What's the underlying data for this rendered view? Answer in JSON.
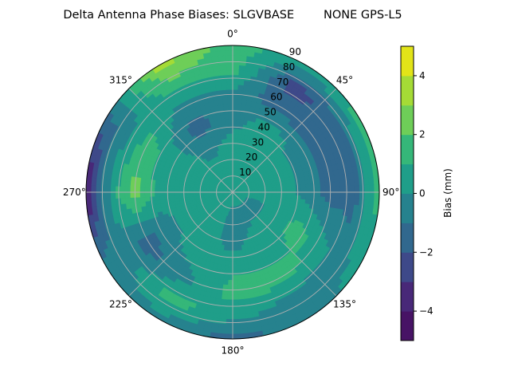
{
  "chart_data": {
    "type": "heatmap",
    "subtype": "polar-filled-contour",
    "title": "Delta Antenna Phase Biases: SLGVBASE        NONE GPS-L5",
    "angular_tick_labels": [
      "0°",
      "45°",
      "90°",
      "135°",
      "180°",
      "225°",
      "270°",
      "315°"
    ],
    "angular_ticks": [
      0,
      45,
      90,
      135,
      180,
      225,
      270,
      315
    ],
    "radial_tick_labels": [
      "10",
      "20",
      "30",
      "40",
      "50",
      "60",
      "70",
      "80",
      "90"
    ],
    "radial_ticks": [
      10,
      20,
      30,
      40,
      50,
      60,
      70,
      80,
      90
    ],
    "radial_range": [
      0,
      90
    ],
    "angular_direction": "clockwise",
    "angular_zero": "top",
    "grid": true,
    "colormap": "viridis",
    "colorbar": {
      "label": "Bias (mm)",
      "range": [
        -5,
        5
      ],
      "levels": [
        -5,
        -4,
        -3,
        -2,
        -1,
        0,
        1,
        2,
        3,
        4,
        5
      ],
      "tick_labels": [
        "−4",
        "−2",
        "0",
        "2",
        "4"
      ],
      "ticks": [
        -4,
        -2,
        0,
        2,
        4
      ],
      "placement": "right"
    },
    "level_colors": [
      "#471365",
      "#482878",
      "#3e4989",
      "#31688e",
      "#26828e",
      "#1f9e89",
      "#35b779",
      "#6ece58",
      "#a5db36",
      "#e2e418"
    ],
    "grid_azimuth_deg": [
      0,
      30,
      60,
      90,
      120,
      150,
      180,
      210,
      240,
      270,
      300,
      330
    ],
    "grid_zenith_deg": [
      0,
      15,
      30,
      45,
      60,
      75,
      90
    ],
    "values_mm": [
      [
        0.5,
        0.5,
        0.5,
        -0.5,
        -0.5,
        1.5,
        1.5
      ],
      [
        0.5,
        0.5,
        0.5,
        0.5,
        -1.5,
        -2.5,
        0.5
      ],
      [
        0.5,
        0.5,
        0.5,
        -0.5,
        -1.5,
        -1.5,
        1.5
      ],
      [
        0.5,
        0.5,
        0.5,
        -0.5,
        -1.5,
        -1.5,
        1.5
      ],
      [
        0.5,
        -0.5,
        0.5,
        1.5,
        0.5,
        -0.5,
        0.5
      ],
      [
        0.5,
        -0.5,
        0.5,
        0.5,
        1.5,
        -0.5,
        -0.5
      ],
      [
        0.5,
        -0.5,
        -0.5,
        0.5,
        1.5,
        0.5,
        -1.5
      ],
      [
        0.5,
        0.5,
        0.5,
        0.5,
        -0.5,
        1.5,
        -0.5
      ],
      [
        0.5,
        0.5,
        0.5,
        -0.5,
        -1.5,
        -0.5,
        -0.5
      ],
      [
        0.5,
        0.5,
        0.5,
        0.5,
        2.5,
        0.5,
        -4.5
      ],
      [
        0.5,
        0.5,
        0.5,
        0.5,
        1.5,
        -0.5,
        -1.5
      ],
      [
        0.5,
        0.5,
        -0.5,
        -1.5,
        -0.5,
        1.5,
        3.5
      ]
    ]
  }
}
